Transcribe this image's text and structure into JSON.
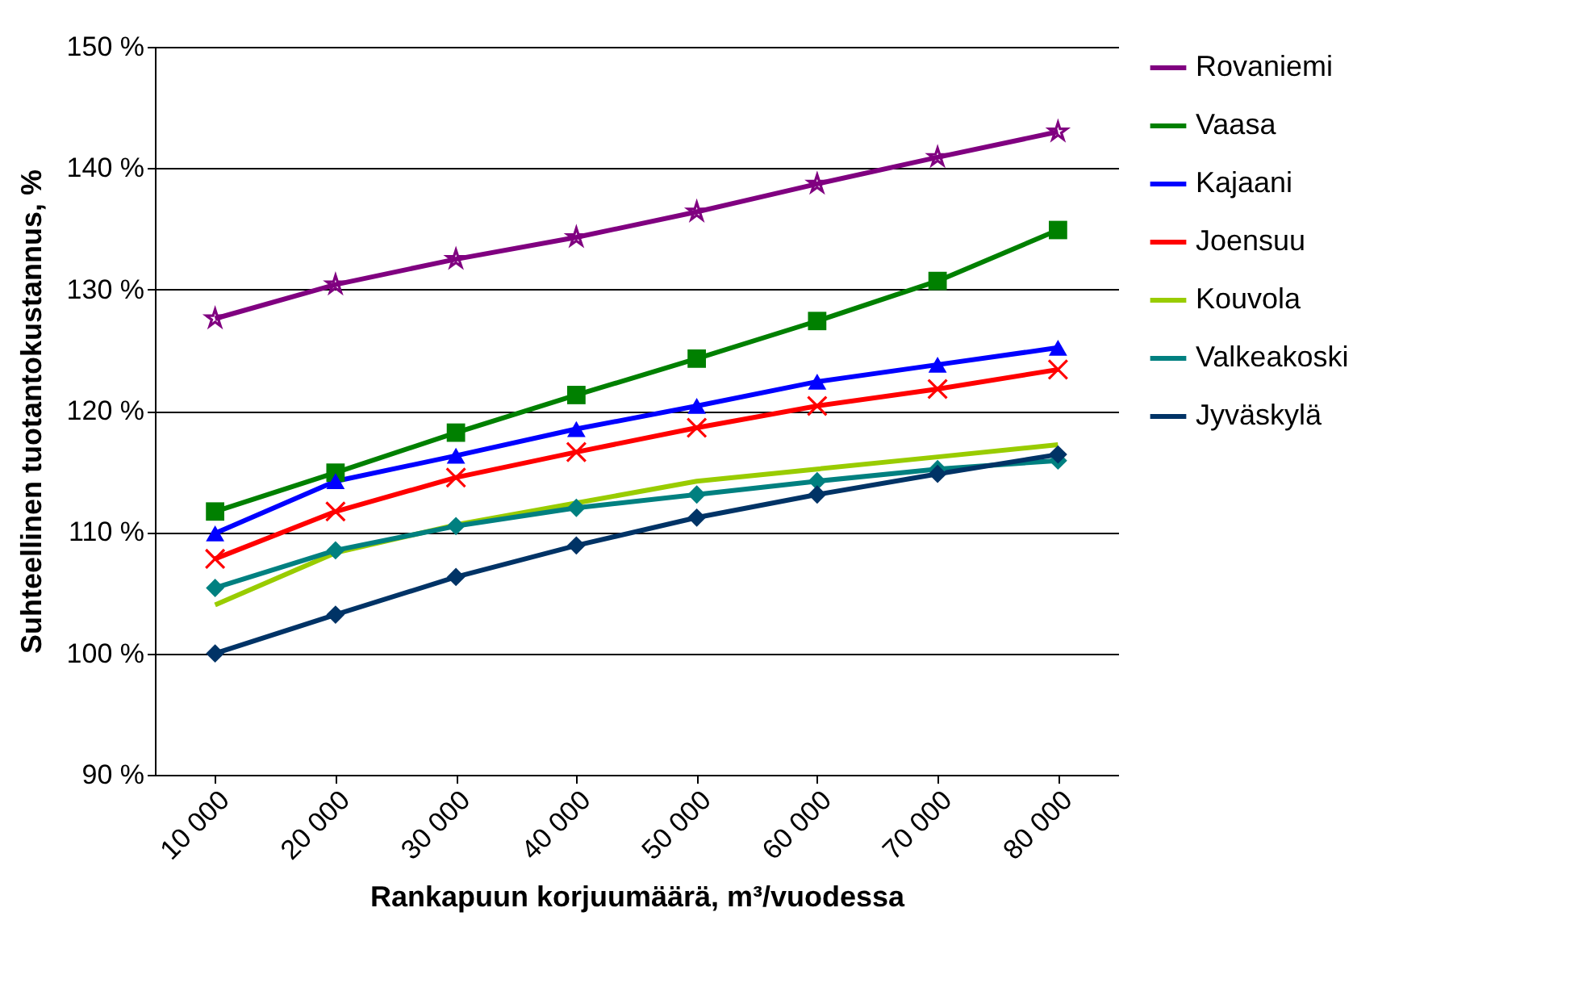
{
  "chart_data": {
    "type": "line",
    "xlabel": "Rankapuun korjuumäärä, m³/vuodessa",
    "ylabel": "Suhteellinen tuotantokustannus, %",
    "categories": [
      "10 000",
      "20 000",
      "30 000",
      "40 000",
      "50 000",
      "60 000",
      "70 000",
      "80 000"
    ],
    "ylim": [
      90,
      150
    ],
    "yticks": [
      {
        "value": 90,
        "label": "90 %"
      },
      {
        "value": 100,
        "label": "100 %"
      },
      {
        "value": 110,
        "label": "110 %"
      },
      {
        "value": 120,
        "label": "120 %"
      },
      {
        "value": 130,
        "label": "130 %"
      },
      {
        "value": 140,
        "label": "140 %"
      },
      {
        "value": 150,
        "label": "150 %"
      }
    ],
    "grid": "y",
    "legend": "right",
    "series": [
      {
        "name": "Rovaniemi",
        "color": "#800080",
        "marker": "star",
        "values": [
          127.6,
          130.4,
          132.5,
          134.3,
          136.4,
          138.7,
          140.9,
          143.0
        ]
      },
      {
        "name": "Vaasa",
        "color": "#008000",
        "marker": "square",
        "values": [
          111.7,
          114.9,
          118.2,
          121.3,
          124.3,
          127.4,
          130.7,
          134.9
        ]
      },
      {
        "name": "Kajaani",
        "color": "#0000ff",
        "marker": "triangle",
        "values": [
          109.9,
          114.2,
          116.3,
          118.5,
          120.4,
          122.4,
          123.8,
          125.2
        ]
      },
      {
        "name": "Joensuu",
        "color": "#ff0000",
        "marker": "cross",
        "values": [
          107.8,
          111.7,
          114.5,
          116.6,
          118.6,
          120.4,
          121.8,
          123.4
        ]
      },
      {
        "name": "Kouvola",
        "color": "#99cc00",
        "marker": "none",
        "values": [
          104.0,
          108.3,
          110.6,
          112.4,
          114.2,
          115.2,
          116.2,
          117.2
        ]
      },
      {
        "name": "Valkeakoski",
        "color": "#008080",
        "marker": "diamond",
        "values": [
          105.4,
          108.5,
          110.5,
          112.0,
          113.1,
          114.2,
          115.2,
          115.9
        ]
      },
      {
        "name": "Jyväskylä",
        "color": "#003366",
        "marker": "diamond",
        "values": [
          100.0,
          103.2,
          106.3,
          108.9,
          111.2,
          113.1,
          114.8,
          116.4
        ]
      }
    ]
  }
}
